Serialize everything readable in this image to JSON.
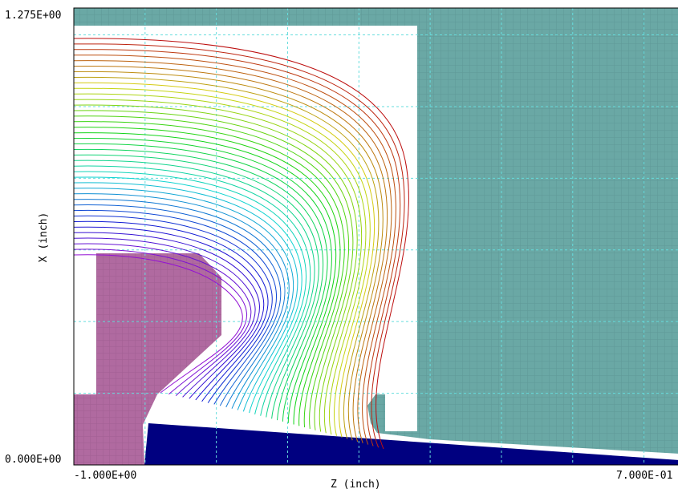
{
  "chart_data": {
    "type": "contour",
    "xlabel": "Z (inch)",
    "ylabel": "X (inch)",
    "xlim": [
      -1.0,
      0.7
    ],
    "ylim": [
      0.0,
      1.275
    ],
    "x_min_label": "-1.000E+00",
    "x_max_label": "7.000E-01",
    "y_min_label": "0.000E+00",
    "y_max_label": "1.275E+00",
    "grid": true,
    "grid_lines_x": [
      -0.8,
      -0.6,
      -0.4,
      -0.2,
      0.0,
      0.2,
      0.4,
      0.6
    ],
    "grid_lines_y": [
      0.2,
      0.4,
      0.6,
      0.8,
      1.0,
      1.2
    ],
    "equipotential_count": 40,
    "regions": [
      {
        "name": "electrode-left",
        "color": "#b06aa0"
      },
      {
        "name": "electrode-right",
        "color": "#6aa8a5"
      },
      {
        "name": "insulator-bottom",
        "color": "#000080"
      }
    ],
    "colors": {
      "grid": "#66dddd",
      "frame": "#000000"
    }
  }
}
